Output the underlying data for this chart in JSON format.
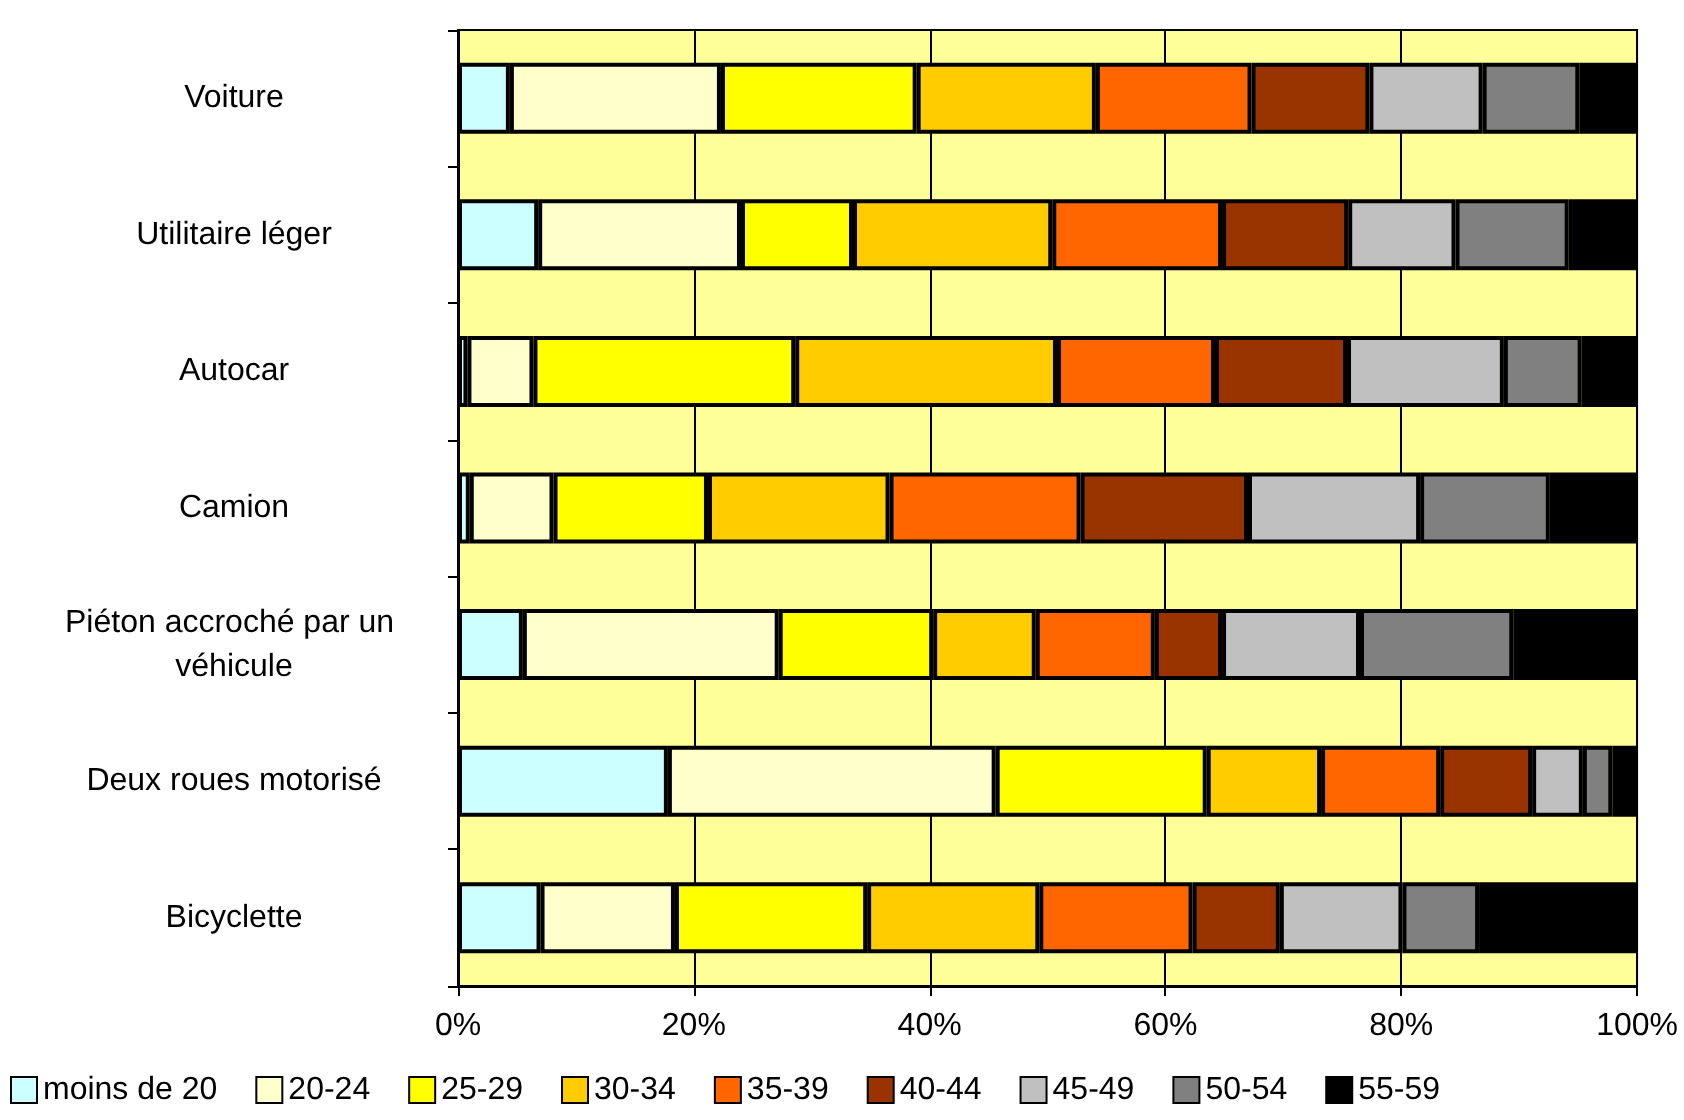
{
  "chart_data": {
    "type": "bar",
    "orientation": "horizontal",
    "stacked": true,
    "categories": [
      "Voiture",
      "Utilitaire léger",
      "Autocar",
      "Camion",
      "Piéton accroché par un véhicule",
      "Deux roues motorisé",
      "Bicyclette"
    ],
    "series": [
      {
        "name": "moins de 20",
        "color": "#ccffff",
        "values": [
          4.4,
          6.8,
          0.8,
          1.0,
          5.5,
          17.8,
          7.0
        ]
      },
      {
        "name": "20-24",
        "color": "#ffffcc",
        "values": [
          17.9,
          17.2,
          5.6,
          7.1,
          21.7,
          27.8,
          11.4
        ]
      },
      {
        "name": "25-29",
        "color": "#ffff00",
        "values": [
          16.6,
          9.5,
          22.2,
          13.1,
          13.1,
          17.9,
          16.3
        ]
      },
      {
        "name": "30-34",
        "color": "#ffcc00",
        "values": [
          15.2,
          16.9,
          22.2,
          15.4,
          8.7,
          9.7,
          14.6
        ]
      },
      {
        "name": "35-39",
        "color": "#ff6600",
        "values": [
          13.2,
          14.4,
          13.4,
          16.2,
          10.1,
          10.1,
          13.0
        ]
      },
      {
        "name": "40-44",
        "color": "#993300",
        "values": [
          10.0,
          10.7,
          11.2,
          14.2,
          5.7,
          7.8,
          7.4
        ]
      },
      {
        "name": "45-49",
        "color": "#c0c0c0",
        "values": [
          9.6,
          9.1,
          13.3,
          14.6,
          11.7,
          4.3,
          10.4
        ]
      },
      {
        "name": "50-54",
        "color": "#808080",
        "values": [
          8.2,
          9.6,
          6.6,
          11.0,
          13.0,
          2.5,
          6.5
        ]
      },
      {
        "name": "55-59",
        "color": "#000000",
        "values": [
          4.9,
          5.8,
          4.7,
          7.4,
          10.5,
          2.1,
          13.4
        ]
      }
    ],
    "xlim": [
      0,
      100
    ],
    "xticks": [
      {
        "value": 0,
        "label": "0%"
      },
      {
        "value": 20,
        "label": "20%"
      },
      {
        "value": 40,
        "label": "40%"
      },
      {
        "value": 60,
        "label": "60%"
      },
      {
        "value": 80,
        "label": "80%"
      },
      {
        "value": 100,
        "label": "100%"
      }
    ],
    "grid": "x",
    "legend": "bottom"
  }
}
